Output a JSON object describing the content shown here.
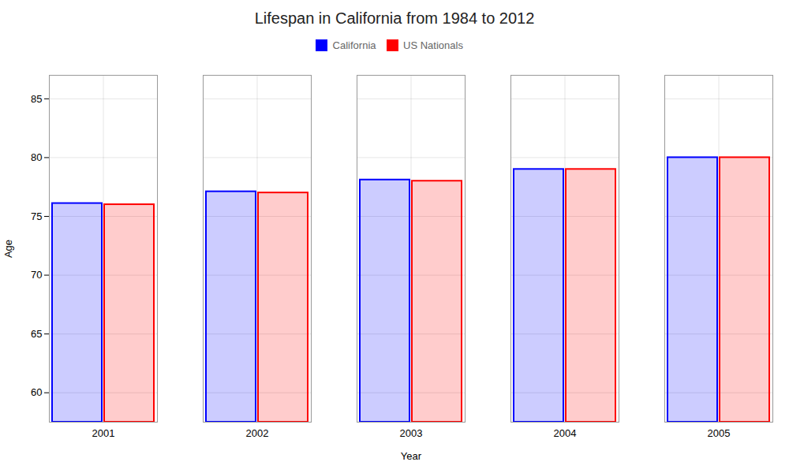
{
  "chart_data": {
    "type": "bar",
    "title": "Lifespan in California from 1984 to 2012",
    "xlabel": "Year",
    "ylabel": "Age",
    "categories": [
      "2001",
      "2002",
      "2003",
      "2004",
      "2005"
    ],
    "series": [
      {
        "name": "California",
        "color": "#0000ff",
        "values": [
          76.1,
          77.1,
          78.1,
          79.0,
          80.0
        ]
      },
      {
        "name": "US Nationals",
        "color": "#ff0000",
        "values": [
          76.0,
          77.0,
          78.0,
          79.0,
          80.0
        ]
      }
    ],
    "ylim": [
      57.5,
      87
    ],
    "yticks": [
      60,
      65,
      70,
      75,
      80,
      85
    ],
    "grid": true,
    "legend": "top"
  }
}
